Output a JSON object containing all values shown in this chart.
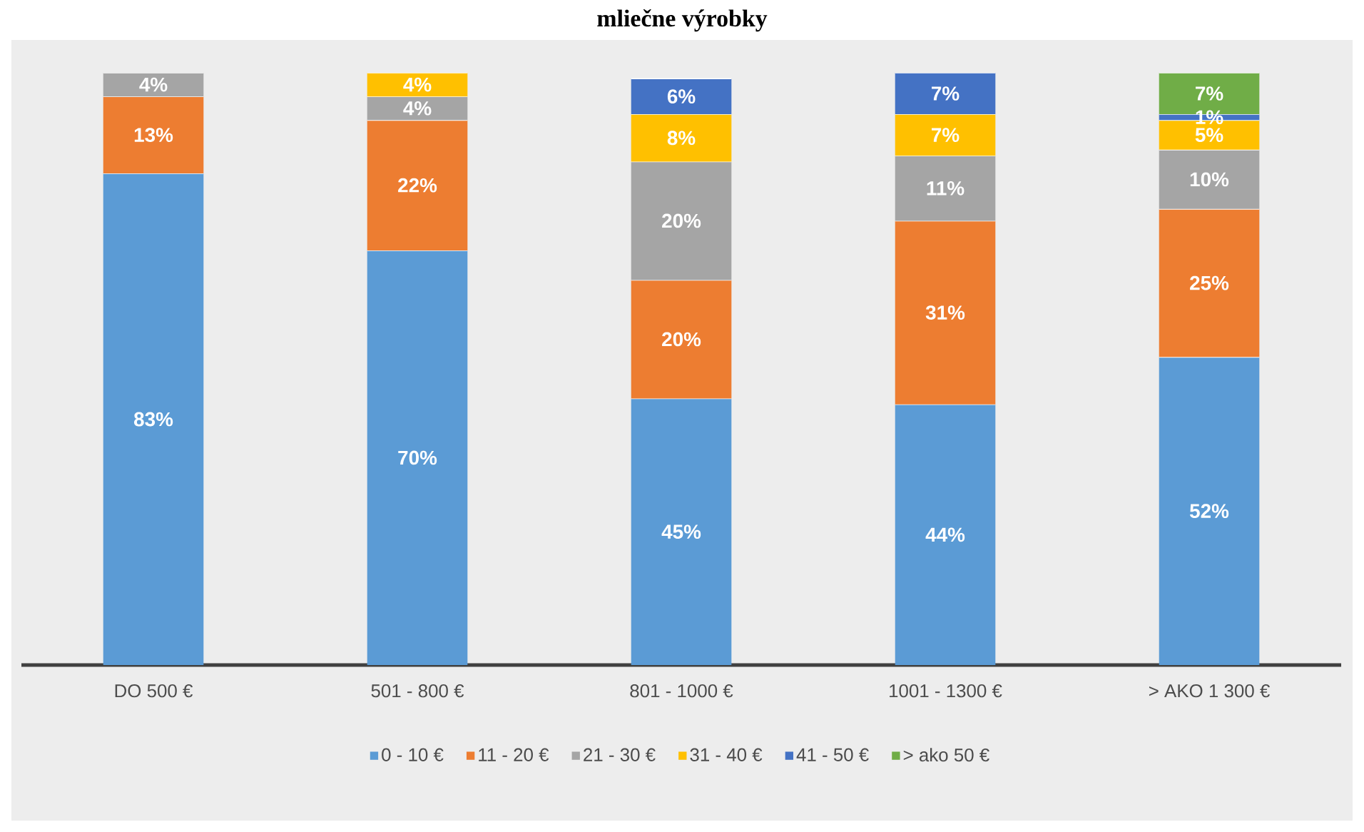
{
  "chart_data": {
    "type": "bar",
    "stacked": true,
    "title": "mliečne výrobky",
    "categories": [
      "DO 500 €",
      "501 - 800 €",
      "801 - 1000 €",
      "1001 - 1300 €",
      "> AKO 1 300 €"
    ],
    "tick_labels": "x",
    "legend": "bottom",
    "series": [
      {
        "name": "0 - 10 €",
        "color": "#5b9bd5",
        "values": [
          83,
          70,
          45,
          44,
          52
        ],
        "value_labels": [
          "83%",
          "70%",
          "45%",
          "44%",
          "52%"
        ]
      },
      {
        "name": "11 - 20 €",
        "color": "#ed7d31",
        "values": [
          13,
          22,
          20,
          31,
          25
        ],
        "value_labels": [
          "13%",
          "22%",
          "20%",
          "31%",
          "25%"
        ]
      },
      {
        "name": "21 - 30 €",
        "color": "#a5a5a5",
        "values": [
          4,
          4,
          20,
          11,
          10
        ],
        "value_labels": [
          "4%",
          "4%",
          "20%",
          "11%",
          "10%"
        ]
      },
      {
        "name": "31 - 40 €",
        "color": "#ffc000",
        "values": [
          null,
          4,
          8,
          7,
          5
        ],
        "value_labels": [
          null,
          "4%",
          "8%",
          "7%",
          "5%"
        ]
      },
      {
        "name": "41 - 50 €",
        "color": "#4472c4",
        "values": [
          null,
          null,
          6,
          7,
          1
        ],
        "value_labels": [
          null,
          null,
          "6%",
          "7%",
          "1%"
        ]
      },
      {
        "name": "> ako 50 €",
        "color": "#70ad47",
        "values": [
          null,
          null,
          null,
          null,
          7
        ],
        "value_labels": [
          null,
          null,
          null,
          null,
          "7%"
        ]
      }
    ]
  }
}
